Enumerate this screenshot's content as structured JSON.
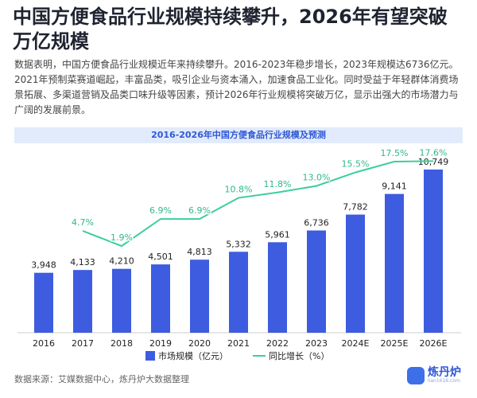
{
  "title": "中国方便食品行业规模持续攀升，2026年有望突破万亿规模",
  "description": "数据表明，中国方便食品行业规模近年来持续攀升。2016-2023年稳步增长，2023年规模达6736亿元。2021年预制菜赛道崛起，丰富品类，吸引企业与资本涌入，加速食品工业化。同时受益于年轻群体消费场景拓展、多渠道营销及品类口味升级等因素，预计2026年行业规模将突破万亿，显示出强大的市场潜力与广阔的发展前景。",
  "chart_data": {
    "type": "bar-line",
    "title": "2016-2026年中国方便食品行业规模及预测",
    "categories": [
      "2016",
      "2017",
      "2018",
      "2019",
      "2020",
      "2021",
      "2022",
      "2023",
      "2024E",
      "2025E",
      "2026E"
    ],
    "series": [
      {
        "name": "市场规模（亿元）",
        "type": "bar",
        "color": "#3d5ce0",
        "values": [
          3948,
          4133,
          4210,
          4501,
          4813,
          5332,
          5961,
          6736,
          7782,
          9141,
          10749
        ],
        "value_labels": [
          "3,948",
          "4,133",
          "4,210",
          "4,501",
          "4,813",
          "5,332",
          "5,961",
          "6,736",
          "7,782",
          "9,141",
          "10,749"
        ]
      },
      {
        "name": "同比增长（%）",
        "type": "line",
        "color": "#3ccf9a",
        "values": [
          null,
          4.7,
          1.9,
          6.9,
          6.9,
          10.8,
          11.8,
          13.0,
          15.5,
          17.5,
          17.6
        ],
        "value_labels": [
          null,
          "4.7%",
          "1.9%",
          "6.9%",
          "6.9%",
          "10.8%",
          "11.8%",
          "13.0%",
          "15.5%",
          "17.5%",
          "17.6%"
        ]
      }
    ]
  },
  "source": "数据来源：艾媒数据中心，炼丹炉大数据整理",
  "logo": {
    "name": "炼丹炉",
    "site": "lian1616.com"
  }
}
